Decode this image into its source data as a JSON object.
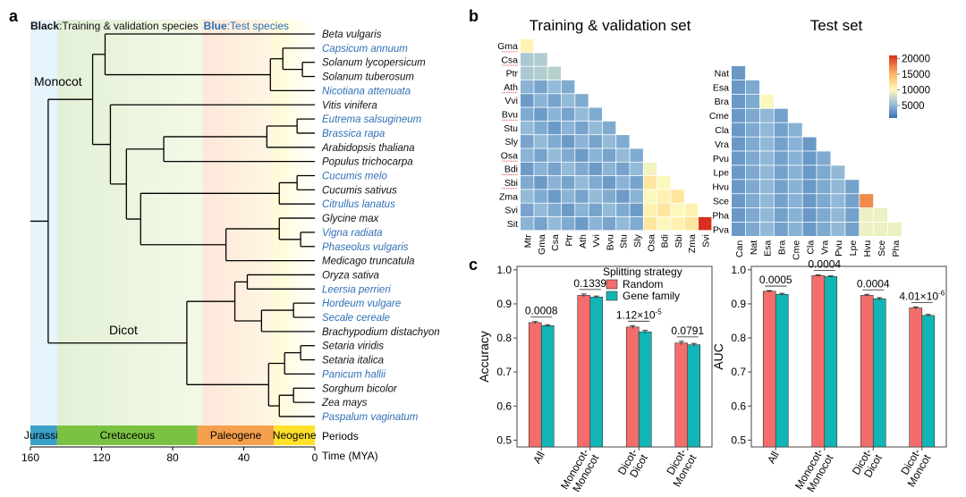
{
  "panels": {
    "a": "a",
    "b": "b",
    "c": "c"
  },
  "colors": {
    "black_species": "#111111",
    "blue_species": "#2f6fb5",
    "random": "#f26d6b",
    "gene_family": "#12b5b5",
    "scale_low": "#3a6fb0",
    "scale_mid": "#fffbbd",
    "scale_high": "#d7301f",
    "jurassic": "#3aa0c8",
    "cretaceous": "#7cc242",
    "paleogene": "#f5a04f",
    "neogene": "#ffe12a"
  },
  "tree": {
    "legend": {
      "black": "Black",
      "black_text": ":Training & validation species",
      "blue": "Blue",
      "blue_text": ":Test species"
    },
    "clade_labels": {
      "monocot": "Monocot",
      "dicot": "Dicot"
    },
    "species": [
      {
        "name": "Beta vulgaris",
        "test": false
      },
      {
        "name": "Capsicum annuum",
        "test": true
      },
      {
        "name": "Solanum lycopersicum",
        "test": false
      },
      {
        "name": "Solanum tuberosum",
        "test": false
      },
      {
        "name": "Nicotiana attenuata",
        "test": true
      },
      {
        "name": "Vitis vinifera",
        "test": false
      },
      {
        "name": "Eutrema salsugineum",
        "test": true
      },
      {
        "name": "Brassica rapa",
        "test": true
      },
      {
        "name": "Arabidopsis thaliana",
        "test": false
      },
      {
        "name": "Populus trichocarpa",
        "test": false
      },
      {
        "name": "Cucumis melo",
        "test": true
      },
      {
        "name": "Cucumis sativus",
        "test": false
      },
      {
        "name": "Citrullus lanatus",
        "test": true
      },
      {
        "name": "Glycine max",
        "test": false
      },
      {
        "name": "Vigna radiata",
        "test": true
      },
      {
        "name": "Phaseolus vulgaris",
        "test": true
      },
      {
        "name": "Medicago truncatula",
        "test": false
      },
      {
        "name": "Oryza sativa",
        "test": false
      },
      {
        "name": "Leersia perrieri",
        "test": true
      },
      {
        "name": "Hordeum vulgare",
        "test": true
      },
      {
        "name": "Secale cereale",
        "test": true
      },
      {
        "name": "Brachypodium distachyon",
        "test": false
      },
      {
        "name": "Setaria viridis",
        "test": false
      },
      {
        "name": "Setaria italica",
        "test": false
      },
      {
        "name": "Panicum hallii",
        "test": true
      },
      {
        "name": "Sorghum bicolor",
        "test": false
      },
      {
        "name": "Zea mays",
        "test": false
      },
      {
        "name": "Paspalum vaginatum",
        "test": true
      }
    ],
    "periods": [
      {
        "name": "Jurassic",
        "start": 160,
        "end": 145
      },
      {
        "name": "Cretaceous",
        "start": 145,
        "end": 66
      },
      {
        "name": "Paleogene",
        "start": 66,
        "end": 23
      },
      {
        "name": "Neogene",
        "start": 23,
        "end": 0
      }
    ],
    "periods_label": "Periods",
    "axis_label": "Time (MYA)",
    "ticks": [
      160,
      120,
      80,
      40,
      0
    ]
  },
  "heatmaps": {
    "training": {
      "title": "Training & validation set",
      "labels": [
        "Mtr",
        "Gma",
        "Csa",
        "Ptr",
        "Ath",
        "Vvi",
        "Bvu",
        "Stu",
        "Sly",
        "Osa",
        "Bdi",
        "Sbi",
        "Zma",
        "Svi",
        "Sit"
      ],
      "underlined": [
        "Gma",
        "Csa",
        "Ath",
        "Bvu",
        "Osa",
        "Bdi",
        "Sbi"
      ]
    },
    "test": {
      "title": "Test set",
      "labels": [
        "Can",
        "Nat",
        "Esa",
        "Bra",
        "Cme",
        "Cla",
        "Vra",
        "Pvu",
        "Lpe",
        "Hvu",
        "Sce",
        "Pha",
        "Pva"
      ]
    },
    "colorbar": {
      "min": 1000,
      "max": 21000,
      "ticks": [
        20000,
        15000,
        10000,
        5000
      ]
    }
  },
  "chart_data": [
    {
      "type": "bar",
      "title": "",
      "categories": [
        "All",
        "Monocot-Monocot",
        "Dicot-Dicot",
        "Dicot-Moncot"
      ],
      "series": [
        {
          "name": "Random",
          "values": [
            0.845,
            0.925,
            0.832,
            0.785
          ],
          "errors": [
            0.003,
            0.004,
            0.004,
            0.005
          ]
        },
        {
          "name": "Gene family",
          "values": [
            0.836,
            0.92,
            0.818,
            0.78
          ],
          "errors": [
            0.003,
            0.003,
            0.004,
            0.004
          ]
        }
      ],
      "pvalues": [
        "0.0008",
        "0.1339",
        "1.12×10-5",
        "0.0791"
      ],
      "xlabel": "",
      "ylabel": "Accuracy",
      "ylim": [
        0.48,
        1.01
      ],
      "yticks": [
        0.5,
        0.6,
        0.7,
        0.8,
        0.9,
        1.0
      ],
      "legend": {
        "title": "Splitting strategy",
        "placement": "top-right"
      }
    },
    {
      "type": "bar",
      "title": "",
      "categories": [
        "All",
        "Monocot-Monocot",
        "Dicot-Dicot",
        "Dicot-Moncot"
      ],
      "series": [
        {
          "name": "Random",
          "values": [
            0.937,
            0.983,
            0.925,
            0.888
          ],
          "errors": [
            0.002,
            0.002,
            0.003,
            0.003
          ]
        },
        {
          "name": "Gene family",
          "values": [
            0.928,
            0.98,
            0.915,
            0.866
          ],
          "errors": [
            0.003,
            0.002,
            0.003,
            0.003
          ]
        }
      ],
      "pvalues": [
        "0.0005",
        "0.0004",
        "0.0004",
        "4.01×10-6"
      ],
      "xlabel": "",
      "ylabel": "AUC",
      "ylim": [
        0.48,
        1.01
      ],
      "yticks": [
        0.5,
        0.6,
        0.7,
        0.8,
        0.9,
        1.0
      ]
    }
  ]
}
